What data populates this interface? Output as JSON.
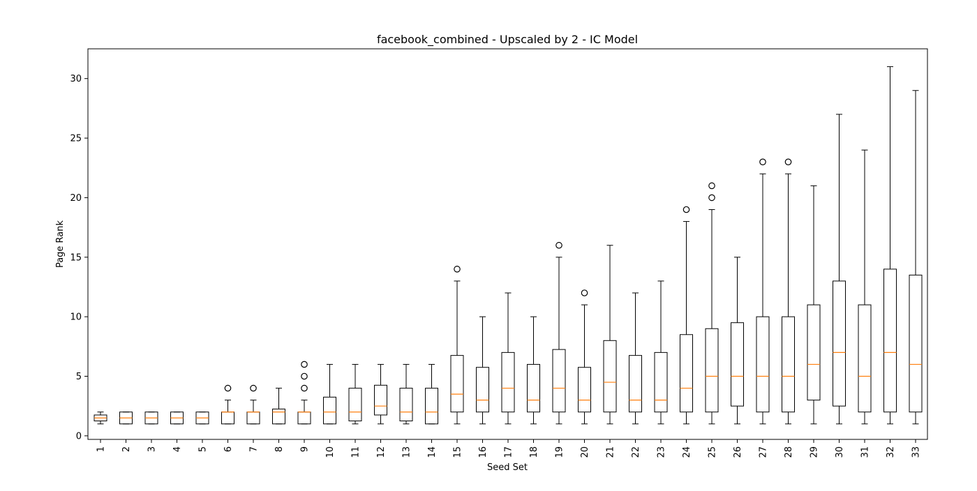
{
  "chart_data": {
    "type": "box",
    "title": "facebook_combined - Upscaled by 2 - IC Model",
    "xlabel": "Seed Set",
    "ylabel": "Page Rank",
    "ylim": [
      -0.3,
      32.5
    ],
    "yticks": [
      0,
      5,
      10,
      15,
      20,
      25,
      30
    ],
    "grid": false,
    "colors": {
      "box": "#000000",
      "median": "#ff7f0e",
      "flier": "#000000"
    },
    "boxes": [
      {
        "label": "1",
        "whislo": 1,
        "q1": 1.25,
        "med": 1.5,
        "q3": 1.75,
        "whishi": 2,
        "fliers": []
      },
      {
        "label": "2",
        "whislo": 1,
        "q1": 1,
        "med": 1.5,
        "q3": 2,
        "whishi": 2,
        "fliers": []
      },
      {
        "label": "3",
        "whislo": 1,
        "q1": 1,
        "med": 1.5,
        "q3": 2,
        "whishi": 2,
        "fliers": []
      },
      {
        "label": "4",
        "whislo": 1,
        "q1": 1,
        "med": 1.5,
        "q3": 2,
        "whishi": 2,
        "fliers": []
      },
      {
        "label": "5",
        "whislo": 1,
        "q1": 1,
        "med": 1.5,
        "q3": 2,
        "whishi": 2,
        "fliers": []
      },
      {
        "label": "6",
        "whislo": 1,
        "q1": 1,
        "med": 2,
        "q3": 2,
        "whishi": 3,
        "fliers": [
          4
        ]
      },
      {
        "label": "7",
        "whislo": 1,
        "q1": 1,
        "med": 2,
        "q3": 2,
        "whishi": 3,
        "fliers": [
          4
        ]
      },
      {
        "label": "8",
        "whislo": 1,
        "q1": 1,
        "med": 2,
        "q3": 2.25,
        "whishi": 4,
        "fliers": []
      },
      {
        "label": "9",
        "whislo": 1,
        "q1": 1,
        "med": 2,
        "q3": 2,
        "whishi": 3,
        "fliers": [
          4,
          5,
          6
        ]
      },
      {
        "label": "10",
        "whislo": 1,
        "q1": 1,
        "med": 2,
        "q3": 3.25,
        "whishi": 6,
        "fliers": []
      },
      {
        "label": "11",
        "whislo": 1,
        "q1": 1.25,
        "med": 2,
        "q3": 4,
        "whishi": 6,
        "fliers": []
      },
      {
        "label": "12",
        "whislo": 1,
        "q1": 1.75,
        "med": 2.5,
        "q3": 4.25,
        "whishi": 6,
        "fliers": []
      },
      {
        "label": "13",
        "whislo": 1,
        "q1": 1.25,
        "med": 2,
        "q3": 4,
        "whishi": 6,
        "fliers": []
      },
      {
        "label": "14",
        "whislo": 1,
        "q1": 1,
        "med": 2,
        "q3": 4,
        "whishi": 6,
        "fliers": []
      },
      {
        "label": "15",
        "whislo": 1,
        "q1": 2,
        "med": 3.5,
        "q3": 6.75,
        "whishi": 13,
        "fliers": [
          14
        ]
      },
      {
        "label": "16",
        "whislo": 1,
        "q1": 2,
        "med": 3,
        "q3": 5.75,
        "whishi": 10,
        "fliers": []
      },
      {
        "label": "17",
        "whislo": 1,
        "q1": 2,
        "med": 4,
        "q3": 7,
        "whishi": 12,
        "fliers": []
      },
      {
        "label": "18",
        "whislo": 1,
        "q1": 2,
        "med": 3,
        "q3": 6,
        "whishi": 10,
        "fliers": []
      },
      {
        "label": "19",
        "whislo": 1,
        "q1": 2,
        "med": 4,
        "q3": 7.25,
        "whishi": 15,
        "fliers": [
          16
        ]
      },
      {
        "label": "20",
        "whislo": 1,
        "q1": 2,
        "med": 3,
        "q3": 5.75,
        "whishi": 11,
        "fliers": [
          12
        ]
      },
      {
        "label": "21",
        "whislo": 1,
        "q1": 2,
        "med": 4.5,
        "q3": 8,
        "whishi": 16,
        "fliers": []
      },
      {
        "label": "22",
        "whislo": 1,
        "q1": 2,
        "med": 3,
        "q3": 6.75,
        "whishi": 12,
        "fliers": []
      },
      {
        "label": "23",
        "whislo": 1,
        "q1": 2,
        "med": 3,
        "q3": 7,
        "whishi": 13,
        "fliers": []
      },
      {
        "label": "24",
        "whislo": 1,
        "q1": 2,
        "med": 4,
        "q3": 8.5,
        "whishi": 18,
        "fliers": [
          19
        ]
      },
      {
        "label": "25",
        "whislo": 1,
        "q1": 2,
        "med": 5,
        "q3": 9,
        "whishi": 19,
        "fliers": [
          20,
          21
        ]
      },
      {
        "label": "26",
        "whislo": 1,
        "q1": 2.5,
        "med": 5,
        "q3": 9.5,
        "whishi": 15,
        "fliers": []
      },
      {
        "label": "27",
        "whislo": 1,
        "q1": 2,
        "med": 5,
        "q3": 10,
        "whishi": 22,
        "fliers": [
          23
        ]
      },
      {
        "label": "28",
        "whislo": 1,
        "q1": 2,
        "med": 5,
        "q3": 10,
        "whishi": 22,
        "fliers": [
          23
        ]
      },
      {
        "label": "29",
        "whislo": 1,
        "q1": 3,
        "med": 6,
        "q3": 11,
        "whishi": 21,
        "fliers": []
      },
      {
        "label": "30",
        "whislo": 1,
        "q1": 2.5,
        "med": 7,
        "q3": 13,
        "whishi": 27,
        "fliers": []
      },
      {
        "label": "31",
        "whislo": 1,
        "q1": 2,
        "med": 5,
        "q3": 11,
        "whishi": 24,
        "fliers": []
      },
      {
        "label": "32",
        "whislo": 1,
        "q1": 2,
        "med": 7,
        "q3": 14,
        "whishi": 31,
        "fliers": []
      },
      {
        "label": "33",
        "whislo": 1,
        "q1": 2,
        "med": 6,
        "q3": 13.5,
        "whishi": 29,
        "fliers": []
      }
    ]
  }
}
